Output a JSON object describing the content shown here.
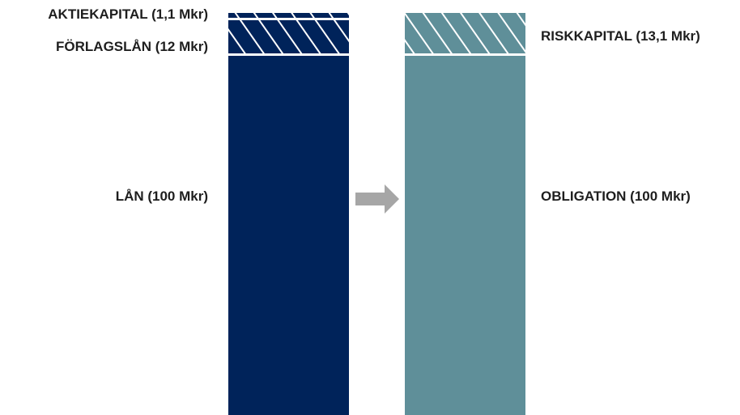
{
  "left_labels": {
    "aktiekapital": "AKTIEKAPITAL (1,1 Mkr)",
    "forlagslan": "FÖRLAGSLÅN (12 Mkr)",
    "lan": "LÅN (100 Mkr)"
  },
  "right_labels": {
    "riskkapital": "RISKKAPITAL (13,1 Mkr)",
    "obligation": "OBLIGATION (100 Mkr)"
  },
  "colors": {
    "navy": "#00235a",
    "teal": "#5f8f99",
    "arrow": "#a6a6a6",
    "text": "#1e1e1e"
  },
  "icons": {
    "arrow": "right-arrow-icon"
  }
}
